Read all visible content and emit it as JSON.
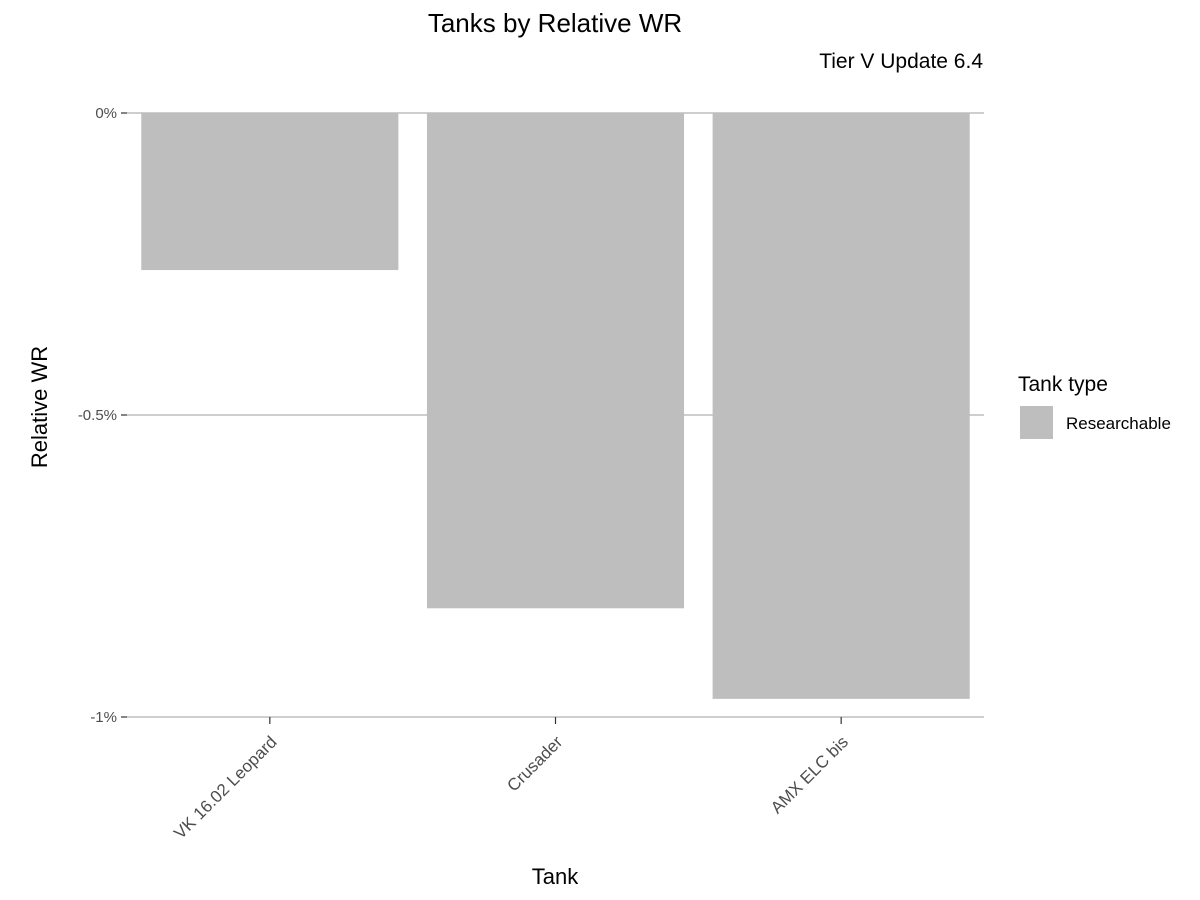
{
  "chart_data": {
    "type": "bar",
    "title": "Tanks by Relative WR",
    "subtitle": "Tier V Update 6.4",
    "xlabel": "Tank",
    "ylabel": "Relative WR",
    "categories": [
      "VK 16.02 Leopard",
      "Crusader",
      "AMX ELC bis"
    ],
    "series": [
      {
        "name": "Researchable",
        "values": [
          -0.26,
          -0.82,
          -0.97
        ]
      }
    ],
    "ylim": [
      -1,
      0
    ],
    "yticks": [
      0,
      -0.5,
      -1
    ],
    "ytick_labels": [
      "0%",
      "-0.5%",
      "-1%"
    ],
    "grid": "horizontal major only",
    "legend": {
      "title": "Tank type",
      "position": "right",
      "entries": [
        {
          "label": "Researchable",
          "color": "#bebebe"
        }
      ]
    },
    "colors": {
      "bar": "#bebebe",
      "grid": "#bdbdbd",
      "axis_text": "#4d4d4d"
    }
  }
}
